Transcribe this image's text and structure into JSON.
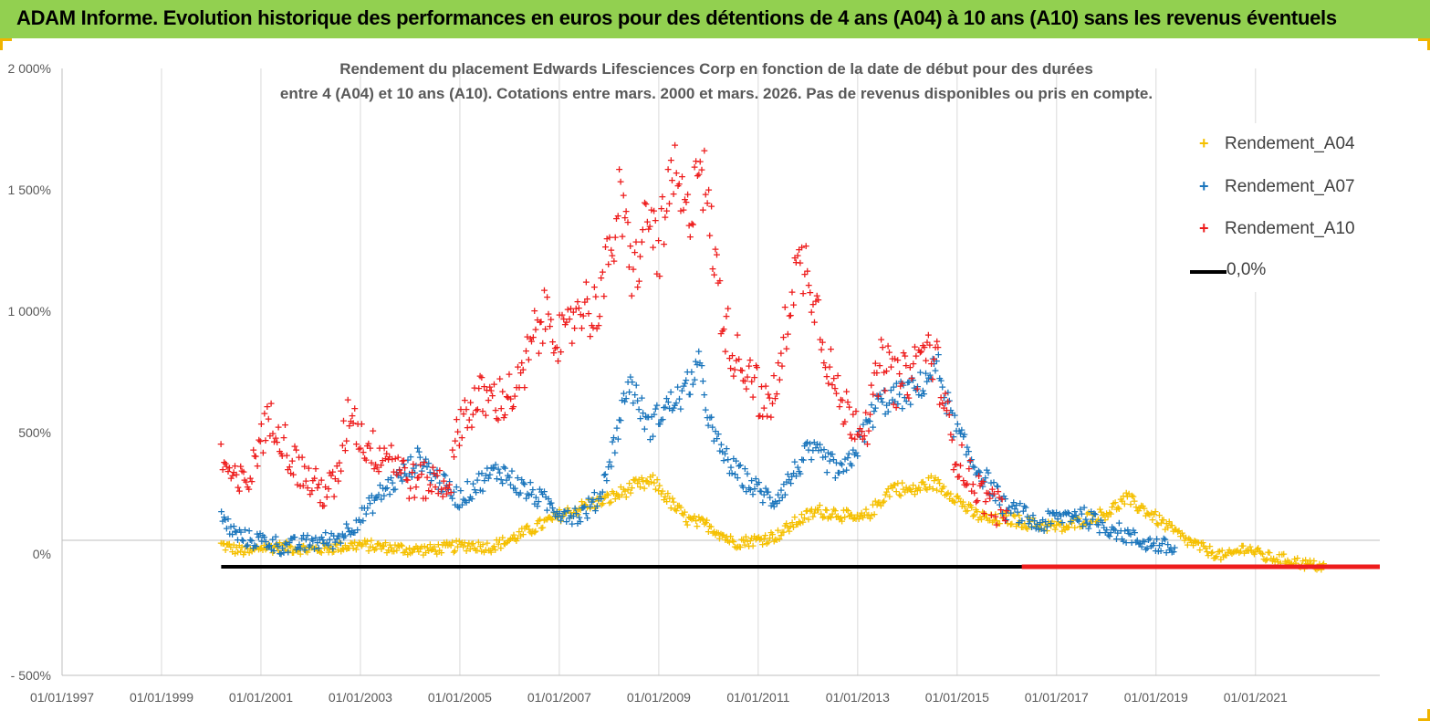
{
  "banner": {
    "title": "ADAM Informe. Evolution historique des performances en euros pour des détentions de 4 ans (A04) à 10 ans (A10) sans les revenus éventuels"
  },
  "colors": {
    "banner_bg": "#92d050",
    "a04": "#f5c000",
    "a07": "#1a75bc",
    "a10": "#ee1c1c",
    "zero": "#000000"
  },
  "chart_data": {
    "type": "scatter",
    "title_line1": "Rendement du placement Edwards Lifesciences Corp en fonction de la date de début pour des durées",
    "title_line2": "entre 4 (A04) et 10 ans (A10). Cotations entre mars. 2000 et mars. 2026. Pas de revenus disponibles ou pris en compte.",
    "xlabel": "",
    "ylabel": "",
    "x_range_years": [
      1997.0,
      2023.5
    ],
    "ylim": [
      -500,
      2000
    ],
    "x_tick_labels": [
      "01/01/1997",
      "01/01/1999",
      "01/01/2001",
      "01/01/2003",
      "01/01/2005",
      "01/01/2007",
      "01/01/2009",
      "01/01/2011",
      "01/01/2013",
      "01/01/2015",
      "01/01/2017",
      "01/01/2019",
      "01/01/2021"
    ],
    "x_tick_years": [
      1997,
      1999,
      2001,
      2003,
      2005,
      2007,
      2009,
      2011,
      2013,
      2015,
      2017,
      2019,
      2021
    ],
    "y_ticks": [
      -500,
      0,
      500,
      1000,
      1500,
      2000
    ],
    "y_tick_labels": [
      "- 500%",
      "0%",
      "500%",
      "1 000%",
      "1 500%",
      "2 000%"
    ],
    "legend_position": "top-right",
    "legend": [
      "Rendement_A04",
      "Rendement_A07",
      "Rendement_A10",
      "0,0%"
    ],
    "series": [
      {
        "name": "Rendement_A04",
        "marker": "+",
        "x": [
          2000.2,
          2000.5,
          2000.8,
          2001.0,
          2001.5,
          2002.0,
          2002.5,
          2003.0,
          2003.5,
          2004.0,
          2004.4,
          2004.8,
          2005.2,
          2005.6,
          2006.0,
          2006.5,
          2007.0,
          2007.5,
          2008.0,
          2008.5,
          2008.9,
          2009.3,
          2009.6,
          2010.0,
          2010.5,
          2011.0,
          2011.4,
          2011.8,
          2012.2,
          2012.6,
          2013.0,
          2013.3,
          2013.7,
          2014.1,
          2014.5,
          2014.9,
          2015.3,
          2015.7,
          2016.0,
          2016.4,
          2016.8,
          2017.2,
          2017.6,
          2018.0,
          2018.4,
          2018.8,
          2019.2,
          2019.6,
          2020.0,
          2020.4,
          2020.8,
          2021.2,
          2021.6,
          2022.0,
          2022.4
        ],
        "y": [
          40,
          20,
          10,
          30,
          30,
          20,
          30,
          40,
          30,
          20,
          20,
          30,
          40,
          30,
          60,
          110,
          160,
          200,
          230,
          280,
          300,
          200,
          140,
          120,
          50,
          60,
          80,
          140,
          180,
          170,
          140,
          180,
          280,
          260,
          300,
          250,
          170,
          140,
          150,
          130,
          120,
          110,
          150,
          170,
          230,
          180,
          120,
          60,
          20,
          -10,
          30,
          -10,
          -20,
          -40,
          -50
        ]
      },
      {
        "name": "Rendement_A07",
        "marker": "+",
        "x": [
          2000.2,
          2000.5,
          2000.8,
          2001.0,
          2001.5,
          2002.0,
          2002.5,
          2003.0,
          2003.4,
          2003.8,
          2004.2,
          2004.6,
          2005.0,
          2005.4,
          2005.8,
          2006.2,
          2006.6,
          2007.0,
          2007.4,
          2007.8,
          2008.1,
          2008.4,
          2008.8,
          2009.1,
          2009.5,
          2009.8,
          2010.1,
          2010.5,
          2010.9,
          2011.3,
          2011.7,
          2012.0,
          2012.3,
          2012.7,
          2013.0,
          2013.4,
          2013.8,
          2014.2,
          2014.6,
          2014.9,
          2015.3,
          2015.7,
          2016.0,
          2016.3,
          2016.6,
          2017.0,
          2017.4,
          2017.8,
          2018.2,
          2018.6,
          2019.0,
          2019.4
        ],
        "y": [
          150,
          80,
          60,
          60,
          30,
          50,
          60,
          150,
          250,
          320,
          400,
          300,
          230,
          300,
          350,
          280,
          230,
          180,
          160,
          230,
          450,
          720,
          520,
          600,
          660,
          780,
          480,
          350,
          280,
          220,
          330,
          420,
          400,
          330,
          450,
          620,
          650,
          680,
          780,
          550,
          380,
          280,
          180,
          170,
          120,
          150,
          170,
          130,
          100,
          60,
          40,
          20
        ]
      },
      {
        "name": "Rendement_A10",
        "marker": "+",
        "x": [
          2000.2,
          2000.5,
          2000.8,
          2001.0,
          2001.3,
          2001.6,
          2001.9,
          2002.2,
          2002.5,
          2002.8,
          2003.0,
          2003.3,
          2003.6,
          2004.0,
          2004.4,
          2004.8,
          2005.0,
          2005.4,
          2005.8,
          2006.2,
          2006.5,
          2006.8,
          2007.1,
          2007.4,
          2007.7,
          2008.0,
          2008.2,
          2008.5,
          2008.8,
          2009.0,
          2009.3,
          2009.6,
          2009.8,
          2010.0,
          2010.3,
          2010.6,
          2010.9,
          2011.1,
          2011.4,
          2011.7,
          2012.0,
          2012.3,
          2012.6,
          2012.9,
          2013.2,
          2013.5,
          2013.8,
          2014.1,
          2014.4,
          2014.6,
          2014.9,
          2015.2,
          2015.5,
          2015.8,
          2016.0
        ],
        "y": [
          400,
          280,
          320,
          500,
          560,
          400,
          320,
          260,
          280,
          620,
          480,
          420,
          420,
          300,
          300,
          300,
          560,
          640,
          640,
          680,
          900,
          1000,
          850,
          1050,
          1000,
          1200,
          1450,
          1150,
          1400,
          1250,
          1550,
          1350,
          1700,
          1400,
          950,
          800,
          750,
          580,
          700,
          1150,
          1200,
          900,
          640,
          560,
          550,
          800,
          700,
          760,
          850,
          780,
          450,
          330,
          250,
          190,
          180
        ]
      },
      {
        "name": "0,0%",
        "type": "line",
        "x": [
          2000.2,
          2023.5
        ],
        "y": [
          0,
          0
        ]
      }
    ],
    "a10_zero_segment": {
      "x": [
        2016.3,
        2023.5
      ],
      "y": [
        0,
        0
      ]
    }
  }
}
